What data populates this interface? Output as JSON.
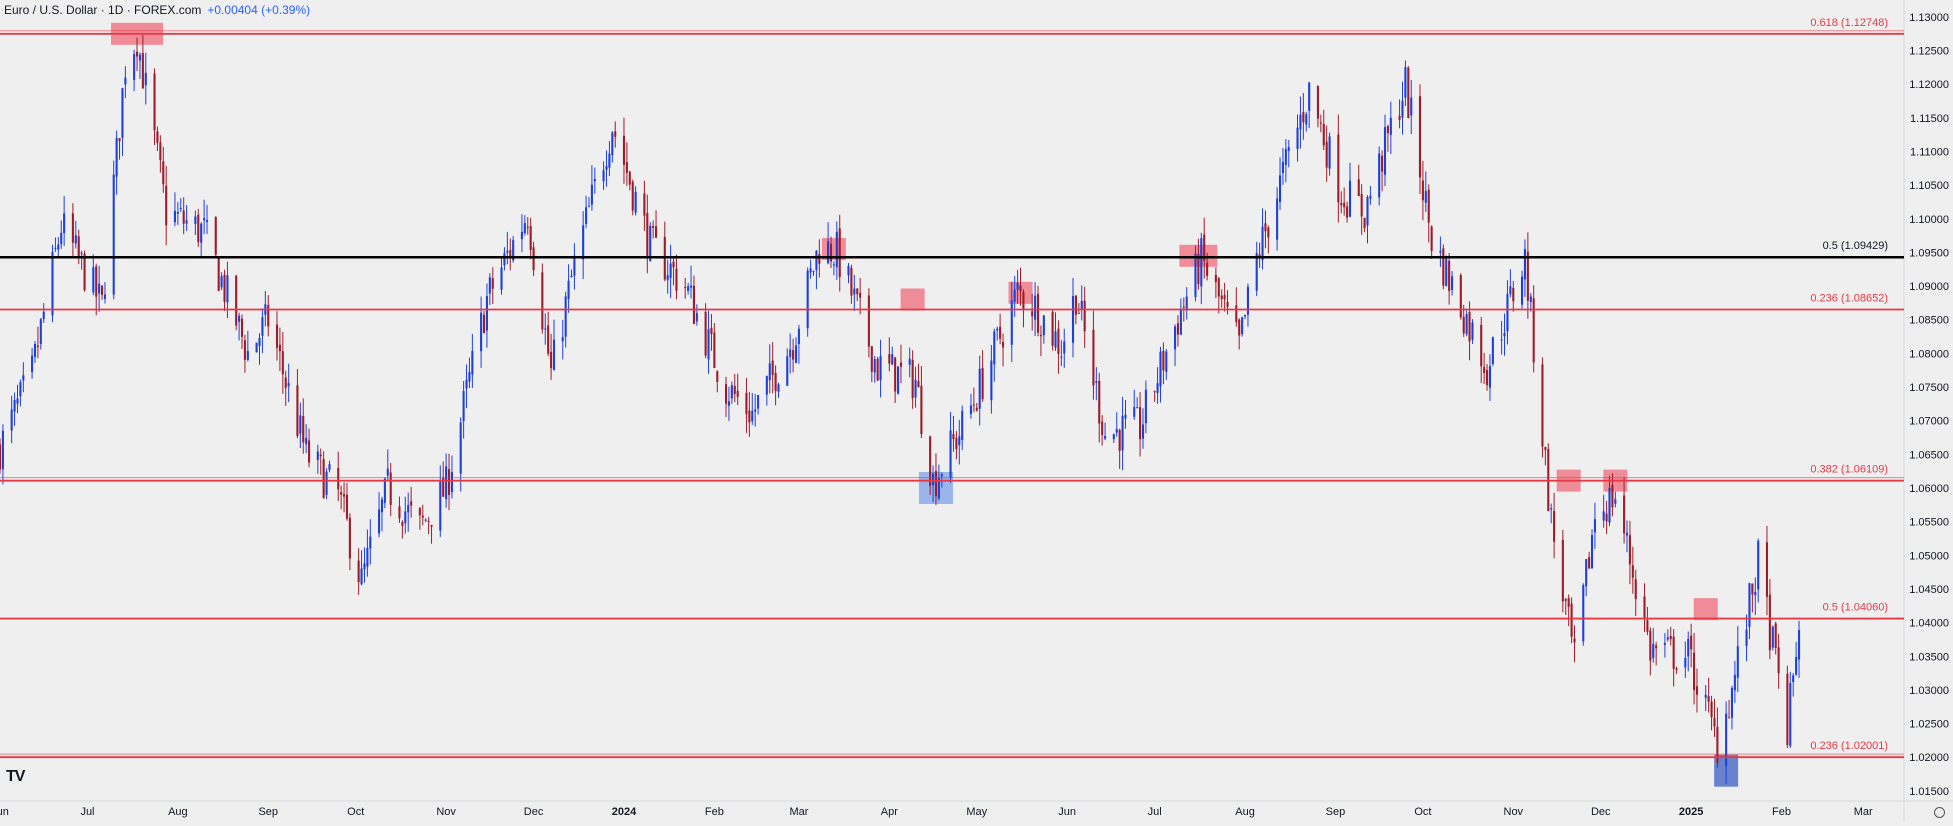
{
  "header": {
    "title": "Euro / U.S. Dollar · 1D · FOREX.com",
    "change": "+0.00404 (+0.39%)"
  },
  "logo_text": "TV",
  "colors": {
    "up": "#1e40d8",
    "down": "#9c1c2a",
    "level": "#e53945",
    "key_level": "#000000",
    "marker": "#f07a88",
    "marker_low": "#8aaae8"
  },
  "chart_data": {
    "type": "candlestick",
    "title": "Euro / U.S. Dollar · 1D · FOREX.com",
    "y_axis": {
      "range": [
        1.0135,
        1.1325
      ],
      "ticks": [
        "1.13000",
        "1.12500",
        "1.12000",
        "1.11500",
        "1.11000",
        "1.10500",
        "1.10000",
        "1.09500",
        "1.09000",
        "1.08500",
        "1.08000",
        "1.07500",
        "1.07000",
        "1.06500",
        "1.06000",
        "1.05500",
        "1.05000",
        "1.04500",
        "1.04000",
        "1.03500",
        "1.03000",
        "1.02500",
        "1.02000",
        "1.01500"
      ]
    },
    "x_axis": {
      "range": [
        "2023-06-01",
        "2025-03-15"
      ],
      "ticks": [
        {
          "label": "Jun",
          "date": "2023-06-01",
          "bold": false
        },
        {
          "label": "Jul",
          "date": "2023-07-01",
          "bold": false
        },
        {
          "label": "Aug",
          "date": "2023-08-01",
          "bold": false
        },
        {
          "label": "Sep",
          "date": "2023-09-01",
          "bold": false
        },
        {
          "label": "Oct",
          "date": "2023-10-01",
          "bold": false
        },
        {
          "label": "Nov",
          "date": "2023-11-01",
          "bold": false
        },
        {
          "label": "Dec",
          "date": "2023-12-01",
          "bold": false
        },
        {
          "label": "2024",
          "date": "2024-01-01",
          "bold": true
        },
        {
          "label": "Feb",
          "date": "2024-02-01",
          "bold": false
        },
        {
          "label": "Mar",
          "date": "2024-03-01",
          "bold": false
        },
        {
          "label": "Apr",
          "date": "2024-04-01",
          "bold": false
        },
        {
          "label": "May",
          "date": "2024-05-01",
          "bold": false
        },
        {
          "label": "Jun",
          "date": "2024-06-01",
          "bold": false
        },
        {
          "label": "Jul",
          "date": "2024-07-01",
          "bold": false
        },
        {
          "label": "Aug",
          "date": "2024-08-01",
          "bold": false
        },
        {
          "label": "Sep",
          "date": "2024-09-01",
          "bold": false
        },
        {
          "label": "Oct",
          "date": "2024-10-01",
          "bold": false
        },
        {
          "label": "Nov",
          "date": "2024-11-01",
          "bold": false
        },
        {
          "label": "Dec",
          "date": "2024-12-01",
          "bold": false
        },
        {
          "label": "2025",
          "date": "2025-01-01",
          "bold": true
        },
        {
          "label": "Feb",
          "date": "2025-02-01",
          "bold": false
        },
        {
          "label": "Mar",
          "date": "2025-03-01",
          "bold": false
        }
      ]
    },
    "price_path": [
      [
        "2023-06-01",
        1.066
      ],
      [
        "2023-06-12",
        1.077
      ],
      [
        "2023-06-22",
        1.099
      ],
      [
        "2023-07-06",
        1.087
      ],
      [
        "2023-07-14",
        1.123
      ],
      [
        "2023-07-18",
        1.127
      ],
      [
        "2023-07-28",
        1.101
      ],
      [
        "2023-08-10",
        1.098
      ],
      [
        "2023-08-25",
        1.08
      ],
      [
        "2023-09-01",
        1.085
      ],
      [
        "2023-09-14",
        1.065
      ],
      [
        "2023-09-25",
        1.059
      ],
      [
        "2023-10-03",
        1.046
      ],
      [
        "2023-10-12",
        1.06
      ],
      [
        "2023-10-23",
        1.054
      ],
      [
        "2023-11-01",
        1.06
      ],
      [
        "2023-11-15",
        1.088
      ],
      [
        "2023-11-29",
        1.101
      ],
      [
        "2023-12-07",
        1.077
      ],
      [
        "2023-12-15",
        1.093
      ],
      [
        "2023-12-28",
        1.114
      ],
      [
        "2024-01-10",
        1.096
      ],
      [
        "2024-01-22",
        1.09
      ],
      [
        "2024-02-05",
        1.075
      ],
      [
        "2024-02-14",
        1.071
      ],
      [
        "2024-02-28",
        1.082
      ],
      [
        "2024-03-08",
        1.096
      ],
      [
        "2024-03-14",
        1.095
      ],
      [
        "2024-03-28",
        1.078
      ],
      [
        "2024-04-10",
        1.076
      ],
      [
        "2024-04-16",
        1.061
      ],
      [
        "2024-04-26",
        1.069
      ],
      [
        "2024-05-03",
        1.076
      ],
      [
        "2024-05-15",
        1.089
      ],
      [
        "2024-05-21",
        1.087
      ],
      [
        "2024-05-30",
        1.081
      ],
      [
        "2024-06-04",
        1.089
      ],
      [
        "2024-06-14",
        1.068
      ],
      [
        "2024-06-26",
        1.069
      ],
      [
        "2024-07-08",
        1.084
      ],
      [
        "2024-07-17",
        1.094
      ],
      [
        "2024-07-30",
        1.081
      ],
      [
        "2024-08-05",
        1.094
      ],
      [
        "2024-08-23",
        1.119
      ],
      [
        "2024-09-03",
        1.104
      ],
      [
        "2024-09-11",
        1.101
      ],
      [
        "2024-09-25",
        1.12
      ],
      [
        "2024-10-04",
        1.097
      ],
      [
        "2024-10-23",
        1.078
      ],
      [
        "2024-11-05",
        1.094
      ],
      [
        "2024-11-14",
        1.055
      ],
      [
        "2024-11-22",
        1.034
      ],
      [
        "2024-11-29",
        1.056
      ],
      [
        "2024-12-06",
        1.059
      ],
      [
        "2024-12-18",
        1.036
      ],
      [
        "2024-12-31",
        1.035
      ],
      [
        "2025-01-10",
        1.022
      ],
      [
        "2025-01-15",
        1.03
      ],
      [
        "2025-01-24",
        1.049
      ],
      [
        "2025-02-03",
        1.024
      ],
      [
        "2025-02-07",
        1.04
      ]
    ],
    "horizontal_levels": [
      {
        "price": 1.12748,
        "label": "0.618 (1.12748)",
        "color": "#e53945",
        "label_color": "#e53945",
        "style": "double"
      },
      {
        "price": 1.09429,
        "label": "0.5 (1.09429)",
        "color": "#000000",
        "label_color": "#131722",
        "style": "single"
      },
      {
        "price": 1.08652,
        "label": "0.236 (1.08652)",
        "color": "#e53945",
        "label_color": "#e53945",
        "style": "single"
      },
      {
        "price": 1.06109,
        "label": "0.382 (1.06109)",
        "color": "#e53945",
        "label_color": "#e53945",
        "style": "double"
      },
      {
        "price": 1.0406,
        "label": "0.5 (1.04060)",
        "color": "#e53945",
        "label_color": "#e53945",
        "style": "single"
      },
      {
        "price": 1.02001,
        "label": "0.236 (1.02001)",
        "color": "#e53945",
        "label_color": "#e53945",
        "style": "double"
      }
    ],
    "markers": [
      {
        "date": "2023-07-18",
        "price": 1.12748,
        "color": "#f07a88",
        "kind": "resistance"
      },
      {
        "date": "2024-03-13",
        "price": 1.0955,
        "color": "#f07a88",
        "kind": "resistance"
      },
      {
        "date": "2024-04-09",
        "price": 1.088,
        "color": "#f07a88",
        "kind": "resistance"
      },
      {
        "date": "2024-04-17",
        "price": 1.06,
        "color": "#8aaae8",
        "kind": "support"
      },
      {
        "date": "2024-05-16",
        "price": 1.089,
        "color": "#f07a88",
        "kind": "resistance"
      },
      {
        "date": "2024-07-16",
        "price": 1.0945,
        "color": "#f07a88",
        "kind": "resistance"
      },
      {
        "date": "2024-11-20",
        "price": 1.0611,
        "color": "#f07a88",
        "kind": "resistance"
      },
      {
        "date": "2024-12-06",
        "price": 1.0611,
        "color": "#f07a88",
        "kind": "resistance"
      },
      {
        "date": "2025-01-06",
        "price": 1.042,
        "color": "#f07a88",
        "kind": "resistance"
      },
      {
        "date": "2025-01-13",
        "price": 1.018,
        "color": "#5070c8",
        "kind": "support"
      }
    ]
  }
}
